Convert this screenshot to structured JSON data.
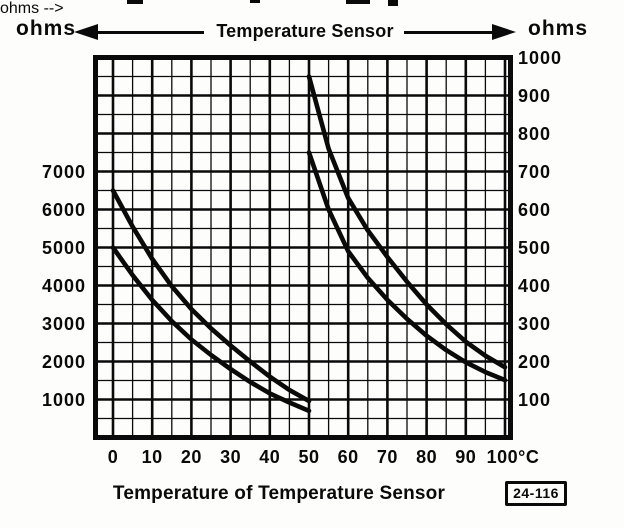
{
  "header": {
    "left_unit": "ohms",
    "right_unit": "ohms",
    "title": "Temperature Sensor"
  },
  "caption": {
    "text": "Temperature of Temperature Sensor",
    "figure_ref": "24-116"
  },
  "chart_data": {
    "type": "line",
    "title": "Temperature Sensor",
    "xlabel": "Temperature of Temperature Sensor",
    "x_unit": "°C",
    "x_ticks": [
      "0",
      "10",
      "20",
      "30",
      "40",
      "50",
      "60",
      "70",
      "80",
      "90",
      "100"
    ],
    "x_range": [
      0,
      100
    ],
    "grid": "on",
    "left_axis": {
      "unit": "ohms",
      "ticks": [
        "7000",
        "6000",
        "5000",
        "4000",
        "3000",
        "2000",
        "1000"
      ],
      "range_top_to_bottom": [
        10000,
        0
      ],
      "applies_to": "0-50 °C band"
    },
    "right_axis": {
      "unit": "ohms",
      "ticks": [
        "1000",
        "900",
        "800",
        "700",
        "600",
        "500",
        "400",
        "300",
        "200",
        "100"
      ],
      "range_top_to_bottom": [
        1000,
        0
      ],
      "applies_to": "50-100 °C band"
    },
    "series": [
      {
        "name": "band-0-50C-upper",
        "scale": "left",
        "points": [
          [
            0,
            6500
          ],
          [
            5,
            5550
          ],
          [
            10,
            4700
          ],
          [
            15,
            3980
          ],
          [
            20,
            3380
          ],
          [
            25,
            2870
          ],
          [
            30,
            2420
          ],
          [
            35,
            2000
          ],
          [
            40,
            1600
          ],
          [
            45,
            1250
          ],
          [
            50,
            960
          ]
        ]
      },
      {
        "name": "band-0-50C-lower",
        "scale": "left",
        "points": [
          [
            0,
            5000
          ],
          [
            5,
            4270
          ],
          [
            10,
            3620
          ],
          [
            15,
            3060
          ],
          [
            20,
            2580
          ],
          [
            25,
            2170
          ],
          [
            30,
            1800
          ],
          [
            35,
            1460
          ],
          [
            40,
            1160
          ],
          [
            45,
            920
          ],
          [
            50,
            700
          ]
        ]
      },
      {
        "name": "band-50-100C-upper",
        "scale": "right",
        "points": [
          [
            50,
            950
          ],
          [
            55,
            760
          ],
          [
            60,
            630
          ],
          [
            65,
            545
          ],
          [
            70,
            475
          ],
          [
            75,
            410
          ],
          [
            80,
            350
          ],
          [
            85,
            298
          ],
          [
            90,
            252
          ],
          [
            95,
            215
          ],
          [
            100,
            185
          ]
        ]
      },
      {
        "name": "band-50-100C-lower",
        "scale": "right",
        "points": [
          [
            50,
            750
          ],
          [
            55,
            600
          ],
          [
            60,
            490
          ],
          [
            65,
            420
          ],
          [
            70,
            362
          ],
          [
            75,
            312
          ],
          [
            80,
            268
          ],
          [
            85,
            230
          ],
          [
            90,
            198
          ],
          [
            95,
            172
          ],
          [
            100,
            151
          ]
        ]
      }
    ],
    "figure_ref": "24-116"
  }
}
